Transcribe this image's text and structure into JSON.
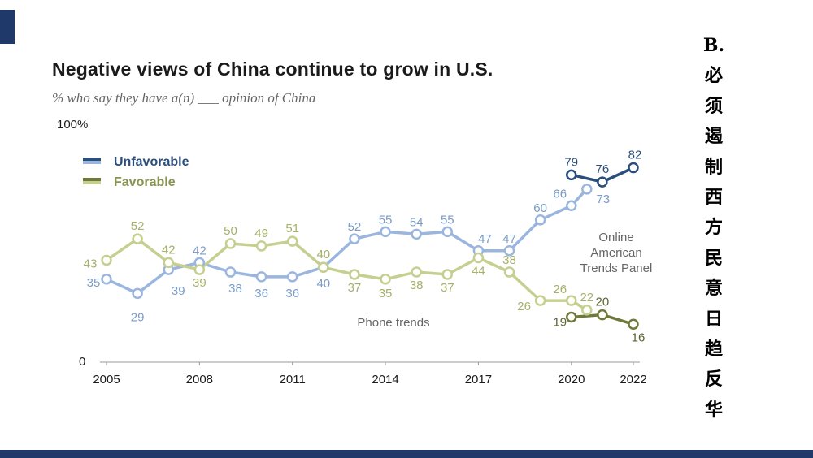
{
  "slide": {
    "side_text": "B.必须遏制西方民意日趋反华"
  },
  "colors": {
    "unfavorable_phone": "#9ab6df",
    "unfavorable_online": "#2c4e7b",
    "favorable_phone": "#c5cf90",
    "favorable_online": "#6f7a3a",
    "accent": "#1f3a6a",
    "axis": "#999999",
    "tick_text": "#1a1a1a"
  },
  "chart_data": {
    "type": "line",
    "title": "Negative views of China continue to grow in U.S.",
    "subtitle": "% who say they have a(n) ___ opinion of China",
    "ylim": [
      0,
      100
    ],
    "xlim": [
      2005,
      2022
    ],
    "y_top_label": "100%",
    "y_bottom_label": "0",
    "x_ticks": [
      2005,
      2008,
      2011,
      2014,
      2017,
      2020,
      2022
    ],
    "x_tick_labels": [
      "2005",
      "2008",
      "2011",
      "2014",
      "2017",
      "2020",
      "2022"
    ],
    "legend": {
      "position": "top-left",
      "items": [
        "Unfavorable",
        "Favorable"
      ]
    },
    "annotations": [
      "Online American Trends Panel",
      "Phone trends"
    ],
    "series": [
      {
        "name": "Unfavorable",
        "segments": [
          {
            "method": "Phone trends",
            "x": [
              2005,
              2006,
              2007,
              2008,
              2009,
              2010,
              2011,
              2012,
              2013,
              2014,
              2015,
              2016,
              2017,
              2018,
              2019,
              2020
            ],
            "values": [
              35,
              29,
              39,
              42,
              38,
              36,
              36,
              40,
              52,
              55,
              54,
              55,
              47,
              47,
              60,
              66
            ]
          },
          {
            "method": "Online American Trends Panel",
            "x": [
              2020,
              2021,
              2022
            ],
            "values": [
              79,
              76,
              82
            ]
          }
        ],
        "extra_points": [
          {
            "x": 2020.5,
            "value": 73
          }
        ]
      },
      {
        "name": "Favorable",
        "segments": [
          {
            "method": "Phone trends",
            "x": [
              2005,
              2006,
              2007,
              2008,
              2009,
              2010,
              2011,
              2012,
              2013,
              2014,
              2015,
              2016,
              2017,
              2018,
              2019,
              2020
            ],
            "values": [
              43,
              52,
              42,
              39,
              50,
              49,
              51,
              40,
              37,
              35,
              38,
              37,
              44,
              38,
              26,
              26
            ]
          },
          {
            "method": "Online American Trends Panel",
            "x": [
              2020,
              2021,
              2022
            ],
            "values": [
              19,
              20,
              16
            ]
          }
        ],
        "extra_points": [
          {
            "x": 2020.5,
            "value": 22
          }
        ]
      }
    ]
  }
}
